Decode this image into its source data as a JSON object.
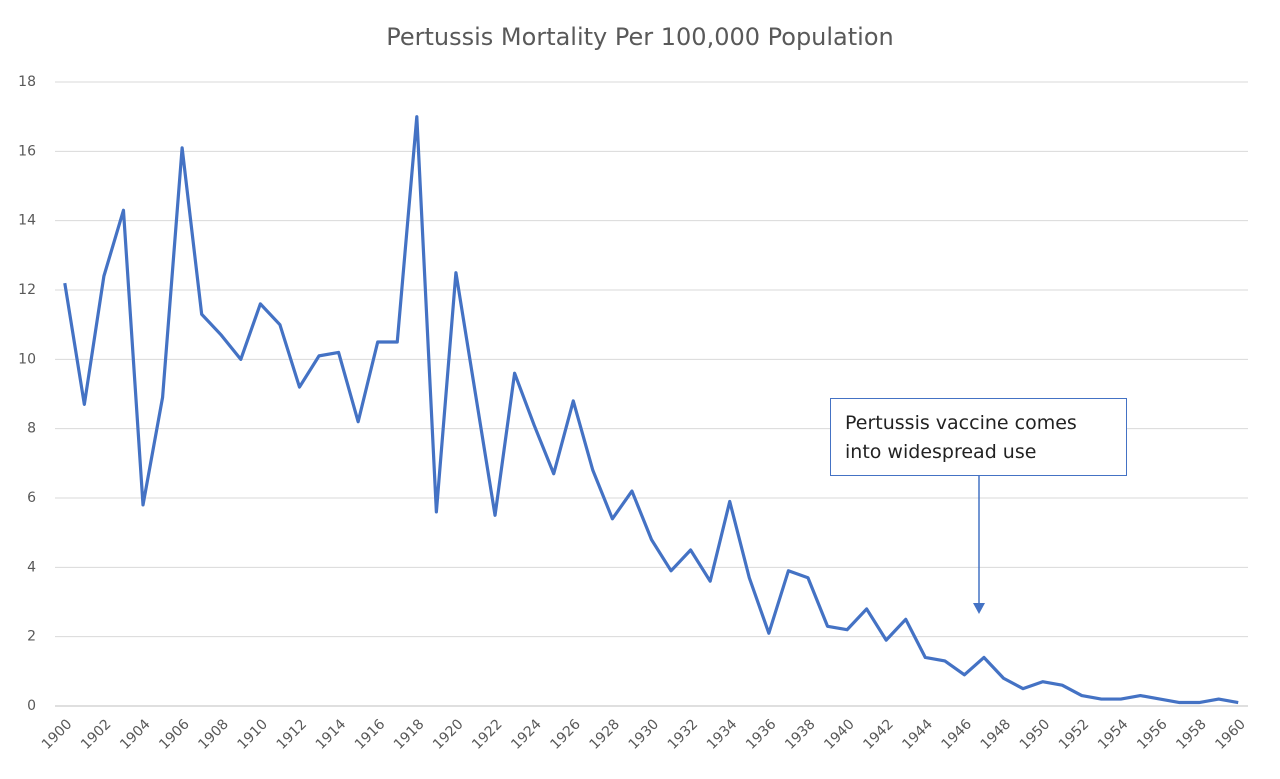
{
  "chart_data": {
    "type": "line",
    "title": "Pertussis Mortality Per 100,000 Population",
    "categories": [
      "1900",
      null,
      "1902",
      null,
      "1904",
      null,
      "1906",
      null,
      "1908",
      null,
      "1910",
      null,
      "1912",
      null,
      "1914",
      null,
      "1916",
      null,
      "1918",
      null,
      "1920",
      null,
      "1922",
      null,
      "1924",
      null,
      "1926",
      null,
      "1928",
      null,
      "1930",
      null,
      "1932",
      null,
      "1934",
      null,
      "1936",
      null,
      "1938",
      null,
      "1940",
      null,
      "1942",
      null,
      "1944",
      null,
      "1946",
      null,
      "1948",
      null,
      "1950",
      null,
      "1952",
      null,
      "1954",
      null,
      "1956",
      null,
      "1958",
      null,
      "1960"
    ],
    "values": [
      12.2,
      8.7,
      12.4,
      14.3,
      5.8,
      8.9,
      16.1,
      11.3,
      10.7,
      10.0,
      11.6,
      11.0,
      9.2,
      10.1,
      10.2,
      8.2,
      10.5,
      10.5,
      17.0,
      5.6,
      12.5,
      9.0,
      5.5,
      9.6,
      8.1,
      6.7,
      8.8,
      6.8,
      5.4,
      6.2,
      4.8,
      3.9,
      4.5,
      3.6,
      5.9,
      3.7,
      2.1,
      3.9,
      3.7,
      2.3,
      2.2,
      2.8,
      1.9,
      2.5,
      1.4,
      1.3,
      0.9,
      1.4,
      0.8,
      0.5,
      0.7,
      0.6,
      0.3,
      0.2,
      0.2,
      0.3,
      0.2,
      0.1,
      0.1,
      0.2,
      0.1
    ],
    "color": "#4472c4",
    "ylim": [
      0,
      18
    ],
    "yticks": [
      0,
      2,
      4,
      6,
      8,
      10,
      12,
      14,
      16,
      18
    ],
    "grid": true,
    "annotation": "Pertussis vaccine comes into widespread use"
  }
}
